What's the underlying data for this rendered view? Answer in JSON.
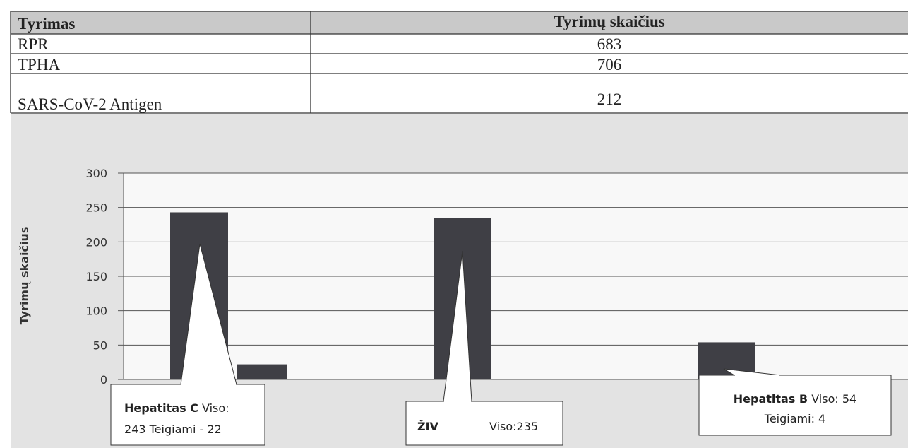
{
  "table": {
    "header": [
      "Tyrimas",
      "Tyrimų  skaičius"
    ],
    "rows": [
      [
        "RPR",
        "683"
      ],
      [
        "TPHA",
        "706"
      ],
      [
        "SARS-CoV-2 Antigen",
        "212"
      ]
    ]
  },
  "chart_data": {
    "type": "bar",
    "ylabel": "Tyrimų skaičius",
    "values": [
      243,
      22,
      235,
      54
    ],
    "color": "#3f3f45",
    "ylim": [
      0,
      300
    ],
    "yticks": [
      0,
      50,
      100,
      150,
      200,
      250,
      300
    ],
    "grid": true,
    "annotations": [
      {
        "bold": "Hepatitas C",
        "line1": " Viso:",
        "line2": "243 Teigiami - 22"
      },
      {
        "bold": "ŽIV",
        "line1": "Viso:235"
      },
      {
        "bold": "Hepatitas B",
        "line1": " Viso:  54",
        "line2": "Teigiami: 4"
      }
    ]
  }
}
